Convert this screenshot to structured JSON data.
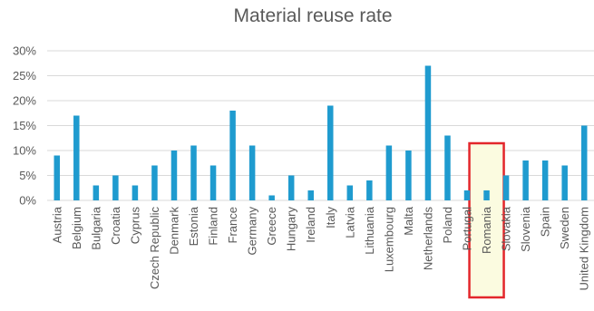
{
  "chart_data": {
    "type": "bar",
    "title": "Material reuse rate",
    "xlabel": "",
    "ylabel": "",
    "y_ticks": [
      "0%",
      "5%",
      "10%",
      "15%",
      "20%",
      "25%",
      "30%"
    ],
    "ylim": [
      0,
      30
    ],
    "grid": true,
    "legend": "none",
    "categories": [
      "Austria",
      "Belgium",
      "Bulgaria",
      "Croatia",
      "Cyprus",
      "Czech Republic",
      "Denmark",
      "Estonia",
      "Finland",
      "France",
      "Germany",
      "Greece",
      "Hungary",
      "Ireland",
      "Italy",
      "Latvia",
      "Lithuania",
      "Luxembourg",
      "Malta",
      "Netherlands",
      "Poland",
      "Portugal",
      "Romania",
      "Slovakia",
      "Slovenia",
      "Spain",
      "Sweden",
      "United Kingdom"
    ],
    "values": [
      9,
      17,
      3,
      5,
      3,
      7,
      10,
      11,
      7,
      18,
      11,
      1,
      5,
      2,
      19,
      3,
      4,
      11,
      10,
      27,
      13,
      2,
      2,
      5,
      8,
      8,
      7,
      15
    ],
    "highlighted_category": "Romania",
    "colors": {
      "bar": "#1f9bcf",
      "grid": "#d9d9d9",
      "highlight_fill": "#fbfbe0",
      "highlight_border": "#e3262b"
    }
  }
}
